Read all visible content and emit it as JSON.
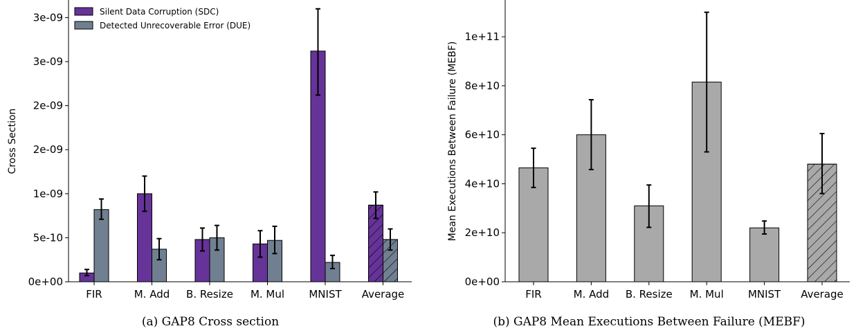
{
  "colors": {
    "sdc": "#663399",
    "due": "#708090",
    "mebf": "#a9a9a9",
    "error_bar": "#000000"
  },
  "chart_data": [
    {
      "type": "bar",
      "caption": "(a) GAP8 Cross section",
      "ylabel": "Cross Section",
      "categories": [
        "FIR",
        "M. Add",
        "B. Resize",
        "M. Mul",
        "MNIST",
        "Average"
      ],
      "ylim": [
        0,
        3.2e-09
      ],
      "yticks": [
        0,
        5e-10,
        1e-09,
        1.5e-09,
        2e-09,
        2.5e-09,
        3e-09
      ],
      "yticklabels": [
        "0e+00",
        "5e-10",
        "1e-09",
        "2e-09",
        "2e-09",
        "3e-09",
        "3e-09"
      ],
      "legend_position": "upper-left",
      "series": [
        {
          "name": "Silent Data Corruption (SDC)",
          "color": "#663399",
          "values": [
            1e-10,
            1e-09,
            4.8e-10,
            4.3e-10,
            2.62e-09,
            8.7e-10
          ],
          "error_low": [
            7e-11,
            8e-10,
            3.5e-10,
            2.8e-10,
            2.12e-09,
            7.2e-10
          ],
          "error_high": [
            1.4e-10,
            1.2e-09,
            6.1e-10,
            5.8e-10,
            3.1e-09,
            1.02e-09
          ],
          "hatched": [
            false,
            false,
            false,
            false,
            false,
            true
          ]
        },
        {
          "name": "Detected Unrecoverable Error (DUE)",
          "color": "#708090",
          "values": [
            8.2e-10,
            3.7e-10,
            5e-10,
            4.7e-10,
            2.2e-10,
            4.8e-10
          ],
          "error_low": [
            7.1e-10,
            2.5e-10,
            3.6e-10,
            3.2e-10,
            1.5e-10,
            3.6e-10
          ],
          "error_high": [
            9.4e-10,
            4.9e-10,
            6.4e-10,
            6.3e-10,
            3e-10,
            6e-10
          ],
          "hatched": [
            false,
            false,
            false,
            false,
            false,
            true
          ]
        }
      ]
    },
    {
      "type": "bar",
      "caption": "(b) GAP8 Mean Executions Between Failure (MEBF)",
      "ylabel": "Mean Executions Between Failure (MEBF)",
      "categories": [
        "FIR",
        "M. Add",
        "B. Resize",
        "M. Mul",
        "MNIST",
        "Average"
      ],
      "ylim": [
        0,
        115000000000.0
      ],
      "yticks": [
        0,
        20000000000.0,
        40000000000.0,
        60000000000.0,
        80000000000.0,
        100000000000.0
      ],
      "yticklabels": [
        "0e+00",
        "2e+10",
        "4e+10",
        "6e+10",
        "8e+10",
        "1e+11"
      ],
      "series": [
        {
          "color": "#a9a9a9",
          "values": [
            46500000000.0,
            60000000000.0,
            31000000000.0,
            81500000000.0,
            22000000000.0,
            48000000000.0
          ],
          "error_low": [
            38500000000.0,
            45800000000.0,
            22200000000.0,
            53000000000.0,
            19500000000.0,
            36000000000.0
          ],
          "error_high": [
            54500000000.0,
            74300000000.0,
            39500000000.0,
            110000000000.0,
            24800000000.0,
            60500000000.0
          ],
          "hatched": [
            false,
            false,
            false,
            false,
            false,
            true
          ]
        }
      ]
    }
  ]
}
